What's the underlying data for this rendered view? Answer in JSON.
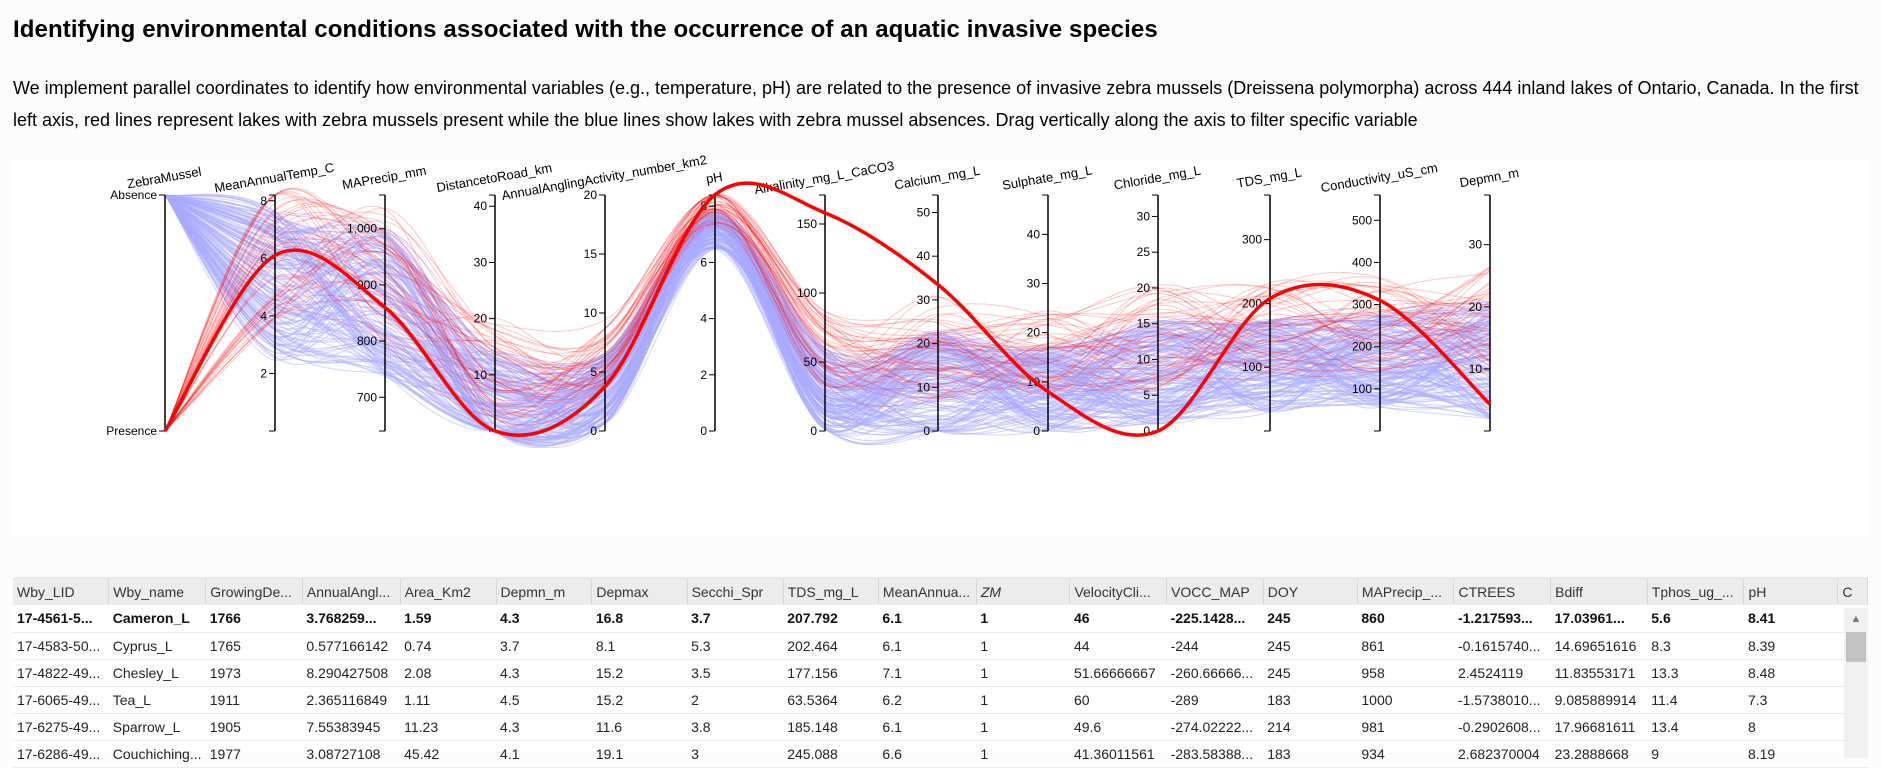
{
  "page": {
    "title": "Identifying environmental conditions associated with the occurrence of an aquatic invasive species",
    "description": "We implement parallel coordinates to identify how environmental variables (e.g., temperature, pH) are related to the presence of invasive zebra mussels (Dreissena polymorpha) across 444 inland lakes of Ontario, Canada. In the first left axis, red lines represent lakes with zebra mussels present while the blue lines show lakes with zebra mussel absences. Drag vertically along the axis to filter specific variable"
  },
  "colors": {
    "presence": "#ff0000",
    "absence": "#aaaaff",
    "highlight": "#ff0000"
  },
  "chart_data": {
    "type": "parallel-coordinates",
    "categorical_axis": {
      "name": "ZebraMussel",
      "categories": [
        "Absence",
        "Presence"
      ]
    },
    "axes": [
      {
        "name": "MeanAnnualTemp_C",
        "range": [
          0,
          8.2
        ],
        "ticks": [
          "2",
          "4",
          "6",
          "8"
        ],
        "tick_values": [
          2,
          4,
          6,
          8
        ]
      },
      {
        "name": "MAPrecip_mm",
        "range": [
          640,
          1060
        ],
        "ticks": [
          "700",
          "800",
          "900",
          "1,000"
        ],
        "tick_values": [
          700,
          800,
          900,
          1000
        ]
      },
      {
        "name": "DistancetoRoad_km",
        "range": [
          0,
          42
        ],
        "ticks": [
          "10",
          "20",
          "30",
          "40"
        ],
        "tick_values": [
          10,
          20,
          30,
          40
        ]
      },
      {
        "name": "AnnualAnglingActivity_number_km2",
        "range": [
          0,
          20
        ],
        "ticks": [
          "0",
          "5",
          "10",
          "15",
          "20"
        ],
        "tick_values": [
          0,
          5,
          10,
          15,
          20
        ]
      },
      {
        "name": "pH",
        "range": [
          0,
          8.4
        ],
        "ticks": [
          "0",
          "2",
          "4",
          "6",
          "8"
        ],
        "tick_values": [
          0,
          2,
          4,
          6,
          8
        ]
      },
      {
        "name": "Alkalinity_mg_L_CaCO3",
        "range": [
          0,
          171
        ],
        "ticks": [
          "0",
          "50",
          "100",
          "150"
        ],
        "tick_values": [
          0,
          50,
          100,
          150
        ]
      },
      {
        "name": "Calcium_mg_L",
        "range": [
          0,
          54
        ],
        "ticks": [
          "0",
          "10",
          "20",
          "30",
          "40",
          "50"
        ],
        "tick_values": [
          0,
          10,
          20,
          30,
          40,
          50
        ]
      },
      {
        "name": "Sulphate_mg_L",
        "range": [
          0,
          48
        ],
        "ticks": [
          "0",
          "10",
          "20",
          "30",
          "40"
        ],
        "tick_values": [
          0,
          10,
          20,
          30,
          40
        ]
      },
      {
        "name": "Chloride_mg_L",
        "range": [
          0,
          33
        ],
        "ticks": [
          "0",
          "5",
          "10",
          "15",
          "20",
          "25",
          "30"
        ],
        "tick_values": [
          0,
          5,
          10,
          15,
          20,
          25,
          30
        ]
      },
      {
        "name": "TDS_mg_L",
        "range": [
          0,
          370
        ],
        "ticks": [
          "100",
          "200",
          "300"
        ],
        "tick_values": [
          100,
          200,
          300
        ]
      },
      {
        "name": "Conductivity_uS_cm",
        "range": [
          0,
          560
        ],
        "ticks": [
          "100",
          "200",
          "300",
          "400",
          "500"
        ],
        "tick_values": [
          100,
          200,
          300,
          400,
          500
        ]
      },
      {
        "name": "Depmn_m",
        "range": [
          0,
          38
        ],
        "ticks": [
          "10",
          "20",
          "30"
        ],
        "tick_values": [
          10,
          20,
          30
        ]
      }
    ],
    "highlight": {
      "label": "17-4561-5... Cameron_L",
      "category": "Presence",
      "values": [
        6.1,
        860,
        0,
        3.77,
        8.41,
        158,
        33.5,
        8,
        0,
        207.792,
        310,
        4.3
      ]
    }
  },
  "table": {
    "columns": [
      "Wby_LID",
      "Wby_name",
      "GrowingDe...",
      "AnnualAngl...",
      "Area_Km2",
      "Depmn_m",
      "Depmax",
      "Secchi_Spr",
      "TDS_mg_L",
      "MeanAnnua...",
      "ZM",
      "VelocityCli...",
      "VOCC_MAP",
      "DOY",
      "MAPrecip_...",
      "CTREES",
      "Bdiff",
      "Tphos_ug_...",
      "pH",
      "C"
    ],
    "rows": [
      [
        "17-4561-5...",
        "Cameron_L",
        "1766",
        "3.768259...",
        "1.59",
        "4.3",
        "16.8",
        "3.7",
        "207.792",
        "6.1",
        "1",
        "46",
        "-225.1428...",
        "245",
        "860",
        "-1.217593...",
        "17.03961...",
        "5.6",
        "8.41",
        ""
      ],
      [
        "17-4583-50...",
        "Cyprus_L",
        "1765",
        "0.577166142",
        "0.74",
        "3.7",
        "8.1",
        "5.3",
        "202.464",
        "6.1",
        "1",
        "44",
        "-244",
        "245",
        "861",
        "-0.1615740...",
        "14.69651616",
        "8.3",
        "8.39",
        ""
      ],
      [
        "17-4822-49...",
        "Chesley_L",
        "1973",
        "8.290427508",
        "2.08",
        "4.3",
        "15.2",
        "3.5",
        "177.156",
        "7.1",
        "1",
        "51.66666667",
        "-260.66666...",
        "245",
        "958",
        "2.4524119",
        "11.83553171",
        "13.3",
        "8.48",
        ""
      ],
      [
        "17-6065-49...",
        "Tea_L",
        "1911",
        "2.365116849",
        "1.11",
        "4.5",
        "15.2",
        "2",
        "63.5364",
        "6.2",
        "1",
        "60",
        "-289",
        "183",
        "1000",
        "-1.5738010...",
        "9.085889914",
        "11.4",
        "7.3",
        ""
      ],
      [
        "17-6275-49...",
        "Sparrow_L",
        "1905",
        "7.55383945",
        "11.23",
        "4.3",
        "11.6",
        "3.8",
        "185.148",
        "6.1",
        "1",
        "49.6",
        "-274.02222...",
        "214",
        "981",
        "-0.2902608...",
        "17.96681611",
        "13.4",
        "8",
        ""
      ],
      [
        "17-6286-49...",
        "Couchiching...",
        "1977",
        "3.08727108",
        "45.42",
        "4.1",
        "19.1",
        "3",
        "245.088",
        "6.6",
        "1",
        "41.36011561",
        "-283.58388...",
        "183",
        "934",
        "2.682370004",
        "23.2888668",
        "9",
        "8.19",
        ""
      ]
    ]
  }
}
